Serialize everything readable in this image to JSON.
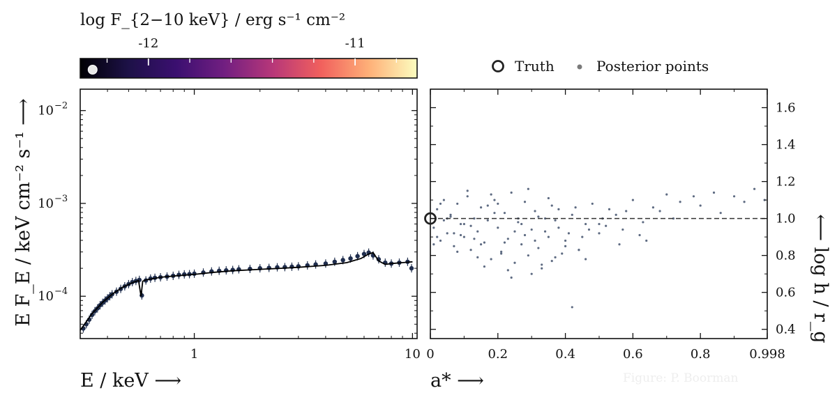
{
  "colorbar": {
    "title": "log F_{2−10 keV} / erg s⁻¹ cm⁻²",
    "ticks": [
      {
        "value": -12,
        "label": "-12"
      },
      {
        "value": -11,
        "label": "-11"
      }
    ],
    "range": [
      -12.33,
      -10.7
    ],
    "current_value": -12.27,
    "colormap": [
      "#000004",
      "#1d1147",
      "#3b0f70",
      "#721f81",
      "#b73779",
      "#f1605d",
      "#feb078",
      "#fcfdbf"
    ]
  },
  "legend": {
    "placement": "top-right above right panel",
    "truth_label": "Truth",
    "posterior_label": "Posterior points"
  },
  "credit": "Figure: P. Boorman",
  "chart_data": [
    {
      "type": "scatter",
      "title": "",
      "xlabel": "E / keV ⟶",
      "ylabel": "E F_E / keV cm⁻² s⁻¹ ⟶",
      "xscale": "log",
      "yscale": "log",
      "xlim": [
        0.3,
        10.5
      ],
      "ylim": [
        3.5e-05,
        0.017
      ],
      "xticks": [
        {
          "value": 1,
          "label": "1"
        },
        {
          "value": 10,
          "label": "10"
        }
      ],
      "yticks": [
        {
          "value": 0.0001,
          "label": "10",
          "exp": "−4"
        },
        {
          "value": 0.001,
          "label": "10",
          "exp": "−3"
        },
        {
          "value": 0.01,
          "label": "10",
          "exp": "−2"
        }
      ],
      "series": [
        {
          "role": "model",
          "x": [
            0.3,
            0.34,
            0.38,
            0.42,
            0.47,
            0.52,
            0.555,
            0.57,
            0.58,
            0.6,
            0.65,
            0.7,
            0.8,
            1.0,
            1.2,
            1.5,
            2.0,
            2.5,
            3.0,
            4.0,
            5.0,
            5.8,
            6.3,
            6.6,
            7.0,
            7.5,
            8.0,
            9.0,
            10.0
          ],
          "y": [
            4.3e-05,
            6.5e-05,
            8.6e-05,
            0.000105,
            0.000125,
            0.00014,
            0.000148,
            0.0001,
            0.000145,
            0.00015,
            0.000155,
            0.00016,
            0.000165,
            0.000172,
            0.00018,
            0.000188,
            0.000195,
            0.0002,
            0.000205,
            0.000215,
            0.00023,
            0.000255,
            0.000285,
            0.000295,
            0.00024,
            0.00022,
            0.000225,
            0.00023,
            0.000235
          ]
        },
        {
          "role": "data",
          "style": "points with error bars",
          "x": [
            0.31,
            0.32,
            0.33,
            0.34,
            0.35,
            0.36,
            0.37,
            0.38,
            0.39,
            0.4,
            0.41,
            0.42,
            0.44,
            0.46,
            0.48,
            0.5,
            0.52,
            0.54,
            0.56,
            0.575,
            0.6,
            0.63,
            0.66,
            0.7,
            0.75,
            0.8,
            0.85,
            0.9,
            0.95,
            1.0,
            1.1,
            1.2,
            1.3,
            1.4,
            1.5,
            1.6,
            1.8,
            2.0,
            2.2,
            2.4,
            2.6,
            2.8,
            3.0,
            3.3,
            3.6,
            4.0,
            4.4,
            4.8,
            5.2,
            5.6,
            6.0,
            6.3,
            6.6,
            7.0,
            7.5,
            8.0,
            8.7,
            9.5,
            9.9
          ],
          "y": [
            4.5e-05,
            5e-05,
            5.6e-05,
            6.3e-05,
            6.9e-05,
            7.4e-05,
            8e-05,
            8.5e-05,
            9e-05,
            9.5e-05,
            0.0001,
            0.000105,
            0.000112,
            0.00012,
            0.000128,
            0.000135,
            0.000142,
            0.000146,
            0.00015,
            0.000102,
            0.000148,
            0.000155,
            0.000158,
            0.00016,
            0.000163,
            0.000166,
            0.00017,
            0.000172,
            0.000173,
            0.000175,
            0.00018,
            0.000185,
            0.000188,
            0.00019,
            0.000192,
            0.000195,
            0.000197,
            0.0002,
            0.000202,
            0.000205,
            0.000206,
            0.000208,
            0.00021,
            0.000215,
            0.00022,
            0.000225,
            0.000235,
            0.000245,
            0.000255,
            0.00027,
            0.000285,
            0.000295,
            0.000275,
            0.00025,
            0.00023,
            0.000225,
            0.00023,
            0.000235,
            0.0002
          ]
        }
      ]
    },
    {
      "type": "scatter",
      "title": "",
      "xlabel": "a* ⟶",
      "ylabel": "⟵ log h / r_g",
      "xlim": [
        0.0,
        0.998
      ],
      "ylim": [
        0.35,
        1.7
      ],
      "xticks": [
        {
          "value": 0.0,
          "label": "0"
        },
        {
          "value": 0.2,
          "label": "0.2"
        },
        {
          "value": 0.4,
          "label": "0.4"
        },
        {
          "value": 0.6,
          "label": "0.6"
        },
        {
          "value": 0.8,
          "label": "0.8"
        },
        {
          "value": 0.998,
          "label": "0.998"
        }
      ],
      "yticks": [
        {
          "value": 0.4,
          "label": "0.4"
        },
        {
          "value": 0.6,
          "label": "0.6"
        },
        {
          "value": 0.8,
          "label": "0.8"
        },
        {
          "value": 1.0,
          "label": "1.0"
        },
        {
          "value": 1.2,
          "label": "1.2"
        },
        {
          "value": 1.4,
          "label": "1.4"
        },
        {
          "value": 1.6,
          "label": "1.6"
        }
      ],
      "truth": {
        "x": 0.0,
        "y": 1.0
      },
      "reference_line": {
        "y": 1.0,
        "style": "dashed"
      },
      "posterior": {
        "x": [
          0.01,
          0.02,
          0.03,
          0.04,
          0.05,
          0.06,
          0.07,
          0.08,
          0.09,
          0.1,
          0.11,
          0.12,
          0.13,
          0.14,
          0.15,
          0.16,
          0.17,
          0.18,
          0.19,
          0.2,
          0.21,
          0.22,
          0.23,
          0.24,
          0.25,
          0.26,
          0.27,
          0.28,
          0.29,
          0.3,
          0.31,
          0.32,
          0.33,
          0.34,
          0.35,
          0.36,
          0.37,
          0.38,
          0.4,
          0.42,
          0.44,
          0.46,
          0.48,
          0.5,
          0.53,
          0.56,
          0.6,
          0.63,
          0.66,
          0.7,
          0.74,
          0.78,
          0.84,
          0.9,
          0.96,
          0.99,
          0.02,
          0.05,
          0.08,
          0.12,
          0.16,
          0.2,
          0.24,
          0.28,
          0.32,
          0.36,
          0.4,
          0.43,
          0.47,
          0.03,
          0.07,
          0.11,
          0.15,
          0.19,
          0.23,
          0.27,
          0.31,
          0.35,
          0.39,
          0.45,
          0.51,
          0.57,
          0.01,
          0.04,
          0.09,
          0.14,
          0.18,
          0.22,
          0.26,
          0.3,
          0.34,
          0.38,
          0.44,
          0.5,
          0.55,
          0.62,
          0.68,
          0.72,
          0.8,
          0.86,
          0.93,
          0.06,
          0.1,
          0.13,
          0.17,
          0.21,
          0.25,
          0.29,
          0.33,
          0.37,
          0.41,
          0.46,
          0.52,
          0.58,
          0.64,
          0.42
        ],
        "y": [
          0.95,
          1.05,
          0.88,
          1.1,
          0.92,
          1.02,
          0.85,
          1.08,
          0.97,
          0.9,
          1.12,
          0.83,
          1.0,
          0.93,
          1.06,
          0.87,
          0.99,
          0.78,
          1.1,
          0.95,
          0.82,
          1.03,
          0.89,
          1.14,
          0.76,
          0.98,
          0.86,
          1.09,
          0.8,
          0.94,
          1.04,
          0.84,
          0.73,
          1.0,
          0.9,
          1.07,
          0.79,
          0.95,
          0.88,
          1.02,
          0.83,
          0.97,
          1.08,
          0.92,
          1.05,
          0.86,
          1.1,
          0.98,
          1.06,
          1.13,
          1.09,
          1.12,
          1.14,
          1.12,
          1.16,
          1.1,
          0.9,
          1.0,
          0.82,
          0.96,
          0.74,
          1.08,
          0.68,
          0.91,
          1.01,
          0.77,
          0.85,
          1.06,
          0.94,
          1.08,
          0.92,
          1.15,
          0.86,
          1.03,
          0.72,
          0.97,
          0.88,
          1.11,
          0.81,
          0.9,
          1.0,
          0.94,
          0.86,
          0.99,
          0.91,
          0.79,
          1.13,
          0.87,
          1.0,
          0.7,
          0.93,
          1.05,
          0.83,
          0.97,
          1.02,
          0.91,
          1.04,
          1.0,
          1.07,
          1.03,
          1.09,
          1.01,
          0.97,
          0.89,
          1.07,
          0.81,
          0.93,
          1.16,
          0.75,
          0.99,
          0.92,
          0.78,
          0.96,
          1.04,
          0.88,
          0.52
        ]
      }
    }
  ]
}
